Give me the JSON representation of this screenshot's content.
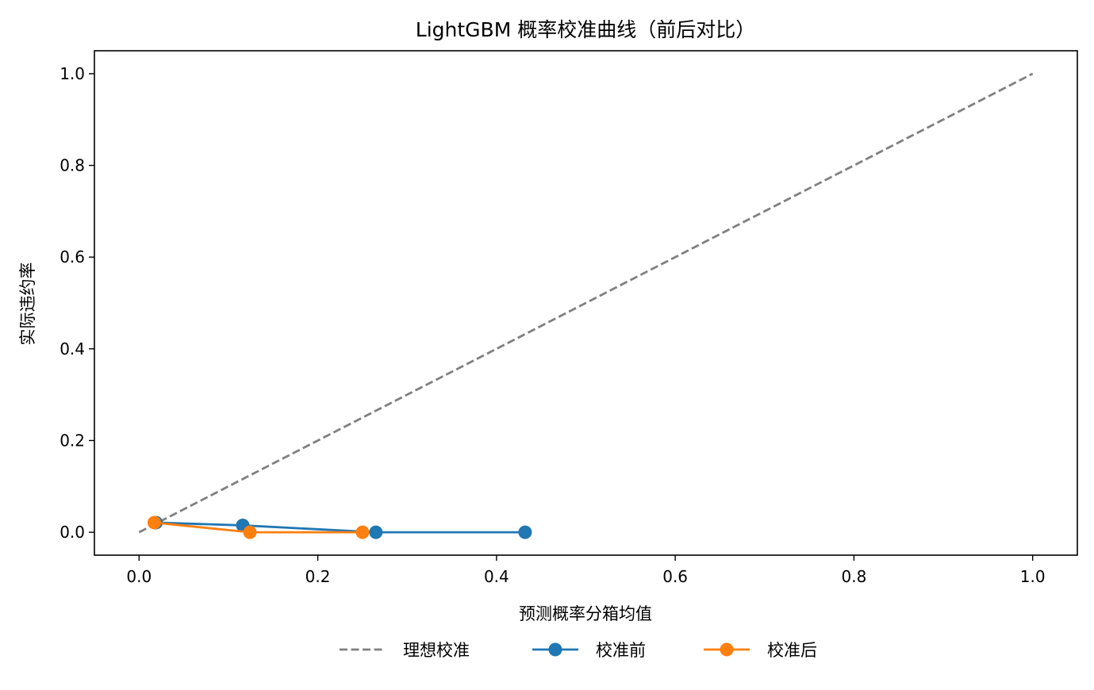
{
  "chart_data": {
    "type": "line",
    "title": "LightGBM 概率校准曲线（前后对比）",
    "xlabel": "预测概率分箱均值",
    "ylabel": "实际违约率",
    "xlim": [
      -0.05,
      1.05
    ],
    "ylim": [
      -0.05,
      1.05
    ],
    "xticks": [
      0.0,
      0.2,
      0.4,
      0.6,
      0.8,
      1.0
    ],
    "yticks": [
      0.0,
      0.2,
      0.4,
      0.6,
      0.8,
      1.0
    ],
    "xtick_labels": [
      "0.0",
      "0.2",
      "0.4",
      "0.6",
      "0.8",
      "1.0"
    ],
    "ytick_labels": [
      "0.0",
      "0.2",
      "0.4",
      "0.6",
      "0.8",
      "1.0"
    ],
    "grid": false,
    "legend_position": "bottom-center-outside",
    "series": [
      {
        "name": "理想校准",
        "style": "dashed",
        "color": "#808080",
        "x": [
          0.0,
          1.0
        ],
        "y": [
          0.0,
          1.0
        ]
      },
      {
        "name": "校准前",
        "style": "solid-marker",
        "color": "#1f77b4",
        "x": [
          0.019,
          0.116,
          0.265,
          0.432
        ],
        "y": [
          0.021,
          0.015,
          0.0,
          0.0
        ]
      },
      {
        "name": "校准后",
        "style": "solid-marker",
        "color": "#ff7f0e",
        "x": [
          0.017,
          0.124,
          0.25
        ],
        "y": [
          0.021,
          0.0,
          0.0
        ]
      }
    ]
  }
}
